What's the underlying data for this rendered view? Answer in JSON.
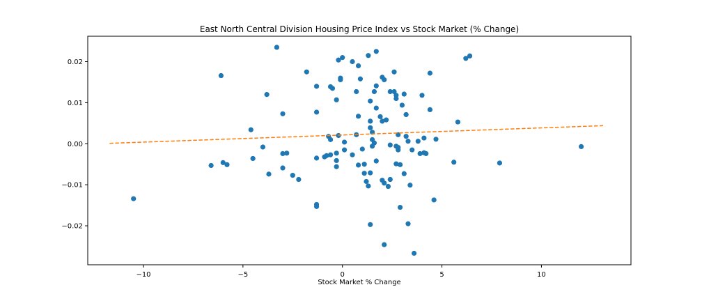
{
  "chart_data": {
    "type": "scatter",
    "title": "East North Central Division Housing Price Index vs Stock Market (% Change)",
    "xlabel": "Stock Market % Change",
    "ylabel": "",
    "xlim": [
      -12.8,
      14.5
    ],
    "ylim": [
      -0.0295,
      0.0262
    ],
    "xticks": [
      -10,
      -5,
      0,
      5,
      10
    ],
    "yticks": [
      -0.02,
      -0.01,
      0.0,
      0.01,
      0.02
    ],
    "xtick_labels": [
      "−10",
      "−5",
      "0",
      "5",
      "10"
    ],
    "ytick_labels": [
      "−0.02",
      "−0.01",
      "0.00",
      "0.01",
      "0.02"
    ],
    "grid": false,
    "colors": {
      "points": "#1f77b4",
      "trend": "#ff7f0e"
    },
    "trendline": {
      "x": [
        -11.7,
        13.1
      ],
      "y": [
        0.0001,
        0.0044
      ],
      "style": "dashed"
    },
    "points": [
      [
        -10.5,
        -0.0134
      ],
      [
        -6.6,
        -0.0053
      ],
      [
        -6.1,
        0.0166
      ],
      [
        -6.0,
        -0.0046
      ],
      [
        -5.8,
        -0.0051
      ],
      [
        -4.6,
        0.0034
      ],
      [
        -4.5,
        -0.0036
      ],
      [
        -3.3,
        0.0235
      ],
      [
        -4.0,
        -0.0008
      ],
      [
        -3.8,
        0.012
      ],
      [
        -3.7,
        -0.0074
      ],
      [
        -3.0,
        0.0073
      ],
      [
        -3.0,
        -0.0024
      ],
      [
        -2.8,
        -0.0023
      ],
      [
        -3.0,
        -0.0059
      ],
      [
        -2.5,
        -0.0077
      ],
      [
        -2.2,
        -0.0087
      ],
      [
        -1.8,
        0.0175
      ],
      [
        -1.3,
        0.014
      ],
      [
        -1.3,
        0.0077
      ],
      [
        -1.3,
        -0.0035
      ],
      [
        -1.3,
        -0.0148
      ],
      [
        -1.3,
        -0.0153
      ],
      [
        -0.9,
        -0.0032
      ],
      [
        -0.8,
        -0.0029
      ],
      [
        -0.7,
        0.0018
      ],
      [
        -0.6,
        0.0139
      ],
      [
        -0.5,
        0.0135
      ],
      [
        -0.6,
        0.001
      ],
      [
        -0.6,
        -0.0027
      ],
      [
        -0.3,
        0.0107
      ],
      [
        -0.3,
        -0.0041
      ],
      [
        -0.3,
        -0.0056
      ],
      [
        -0.3,
        -0.0023
      ],
      [
        -0.2,
        0.0204
      ],
      [
        -0.2,
        0.002
      ],
      [
        -0.1,
        0.016
      ],
      [
        -0.1,
        0.0156
      ],
      [
        0.0,
        0.021
      ],
      [
        0.1,
        0.0004
      ],
      [
        0.1,
        -0.0015
      ],
      [
        0.5,
        0.02
      ],
      [
        0.5,
        -0.0027
      ],
      [
        0.7,
        0.0022
      ],
      [
        0.7,
        0.0127
      ],
      [
        0.8,
        0.019
      ],
      [
        0.8,
        0.0067
      ],
      [
        0.8,
        -0.0052
      ],
      [
        0.9,
        0.0158
      ],
      [
        1.0,
        -0.0013
      ],
      [
        1.1,
        -0.0072
      ],
      [
        1.1,
        -0.005
      ],
      [
        1.2,
        -0.0092
      ],
      [
        1.3,
        0.0215
      ],
      [
        1.3,
        -0.0103
      ],
      [
        1.4,
        0.0104
      ],
      [
        1.4,
        0.0055
      ],
      [
        1.4,
        0.0039
      ],
      [
        1.4,
        -0.0071
      ],
      [
        1.4,
        -0.0197
      ],
      [
        1.5,
        0.0028
      ],
      [
        1.5,
        0.001
      ],
      [
        1.5,
        -0.0006
      ],
      [
        1.6,
        0.0127
      ],
      [
        1.6,
        0.0002
      ],
      [
        1.7,
        0.0225
      ],
      [
        1.7,
        0.0141
      ],
      [
        1.7,
        0.0087
      ],
      [
        1.7,
        -0.0042
      ],
      [
        1.9,
        0.0066
      ],
      [
        2.0,
        0.0055
      ],
      [
        2.0,
        -0.0089
      ],
      [
        2.0,
        0.0162
      ],
      [
        2.1,
        0.0156
      ],
      [
        2.1,
        -0.0096
      ],
      [
        2.1,
        -0.0246
      ],
      [
        2.2,
        0.0058
      ],
      [
        2.3,
        -0.0104
      ],
      [
        2.4,
        -0.0087
      ],
      [
        2.4,
        -0.0003
      ],
      [
        2.4,
        0.0127
      ],
      [
        2.6,
        0.0175
      ],
      [
        2.6,
        0.0127
      ],
      [
        2.7,
        0.0118
      ],
      [
        2.7,
        0.011
      ],
      [
        2.7,
        -0.0006
      ],
      [
        2.7,
        -0.0049
      ],
      [
        2.8,
        0.0022
      ],
      [
        2.8,
        -0.0009
      ],
      [
        2.8,
        -0.0015
      ],
      [
        2.9,
        -0.0051
      ],
      [
        2.9,
        -0.0155
      ],
      [
        3.0,
        0.0094
      ],
      [
        3.1,
        0.0121
      ],
      [
        3.1,
        -0.0073
      ],
      [
        3.2,
        0.0071
      ],
      [
        3.2,
        0.0018
      ],
      [
        3.3,
        0.0006
      ],
      [
        3.3,
        -0.0195
      ],
      [
        3.4,
        -0.0101
      ],
      [
        3.5,
        -0.0015
      ],
      [
        3.6,
        -0.0267
      ],
      [
        3.8,
        0.0006
      ],
      [
        3.9,
        -0.0024
      ],
      [
        4.0,
        0.0118
      ],
      [
        4.1,
        0.0014
      ],
      [
        4.1,
        -0.0022
      ],
      [
        4.2,
        -0.0024
      ],
      [
        4.4,
        0.0172
      ],
      [
        4.4,
        0.0083
      ],
      [
        4.6,
        -0.0137
      ],
      [
        4.7,
        0.0011
      ],
      [
        5.6,
        -0.0045
      ],
      [
        5.8,
        0.0053
      ],
      [
        6.2,
        0.0208
      ],
      [
        6.4,
        0.0214
      ],
      [
        7.9,
        -0.0047
      ],
      [
        12.0,
        -0.0007
      ]
    ]
  }
}
